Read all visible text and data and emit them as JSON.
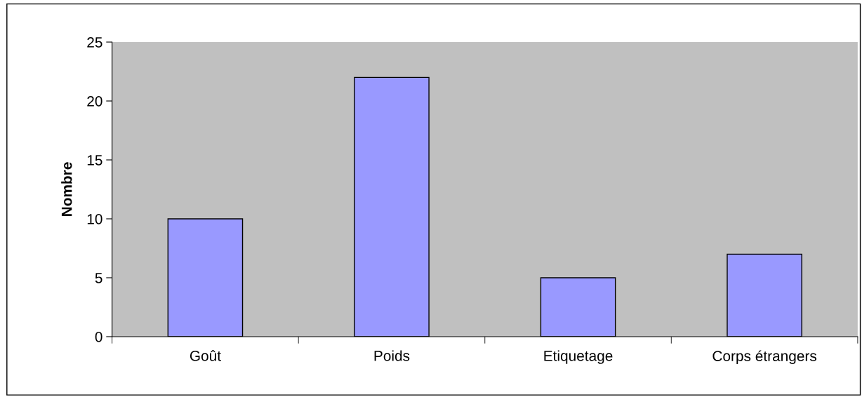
{
  "chart_data": {
    "type": "bar",
    "ylabel": "Nombre",
    "categories": [
      "Goût",
      "Poids",
      "Etiquetage",
      "Corps étrangers"
    ],
    "values": [
      10,
      22,
      5,
      7
    ],
    "color": "#9999ff",
    "ylim": [
      0,
      25
    ],
    "yticks": [
      0,
      5,
      10,
      15,
      20,
      25
    ],
    "grid": false,
    "legend": false
  }
}
